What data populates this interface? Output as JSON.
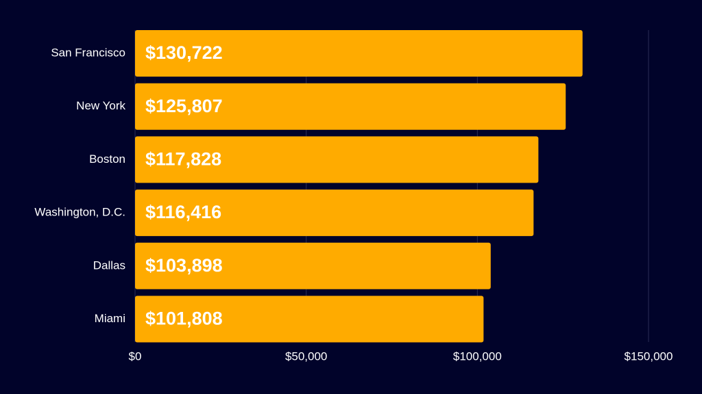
{
  "chart_data": {
    "type": "bar",
    "categories": [
      "San Francisco",
      "New York",
      "Boston",
      "Washington, D.C.",
      "Dallas",
      "Miami"
    ],
    "values": [
      130722,
      125807,
      117828,
      116416,
      103898,
      101808
    ],
    "value_labels": [
      "$130,722",
      "$125,807",
      "$117,828",
      "$116,416",
      "$103,898",
      "$101,808"
    ],
    "color": "#ffab00",
    "xlim": [
      0,
      150000
    ],
    "xticks": [
      {
        "value": 0,
        "label": "$0"
      },
      {
        "value": 50000,
        "label": "$50,000"
      },
      {
        "value": 100000,
        "label": "$100,000"
      },
      {
        "value": 150000,
        "label": "$150,000"
      }
    ],
    "grid": true
  }
}
